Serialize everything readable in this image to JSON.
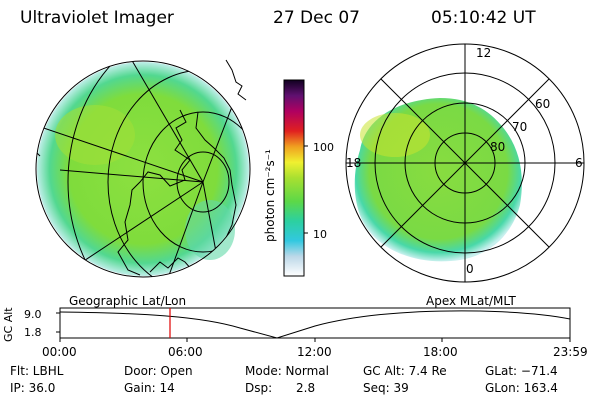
{
  "header": {
    "instrument": "Ultraviolet Imager",
    "date": "27 Dec 07",
    "time": "05:10:42 UT"
  },
  "colorbar": {
    "unit_label": "photon cm⁻²s⁻¹",
    "ticks": [
      "100",
      "10"
    ],
    "scale": "log"
  },
  "left_panel": {
    "projection_label": "Geographic Lat/Lon"
  },
  "right_panel": {
    "projection_label": "Apex MLat/MLT",
    "mlt_labels": [
      "12",
      "18",
      "6",
      "0"
    ],
    "mlat_labels": [
      "60",
      "70",
      "80"
    ]
  },
  "altitude_track": {
    "axis_label": "GC Alt",
    "y_ticks": [
      "9.0",
      "1.8"
    ],
    "x_ticks": [
      "00:00",
      "06:00",
      "12:00",
      "18:00",
      "23:59"
    ],
    "marker_time": "05:10"
  },
  "footer": {
    "flt": "Flt: LBHL",
    "ip": "IP: 36.0",
    "door": "Door: Open",
    "gain": "Gain: 14",
    "mode": "Mode: Normal",
    "dsp_label": "Dsp:",
    "dsp_value": "2.8",
    "gc_alt": "GC Alt: 7.4 Re",
    "seq": "Seq: 39",
    "glat": "GLat: −71.4",
    "glon": "GLon: 163.4"
  },
  "colors": {
    "aurora_main": "#7fdc3c",
    "aurora_edge": "#2fd4c8",
    "aurora_bright": "#d8e830",
    "marker": "#e00000"
  }
}
